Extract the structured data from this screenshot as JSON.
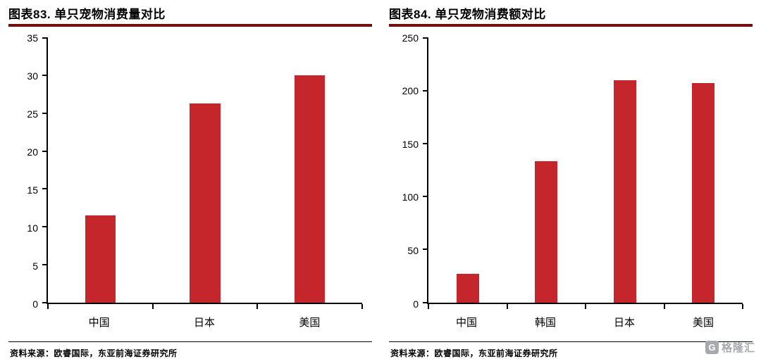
{
  "colors": {
    "bar": "#C5262C",
    "title_rule": "#70110F",
    "axis": "#000000",
    "watermark": "#A6A9AD"
  },
  "watermark": {
    "logo_letter": "G",
    "text": "格隆汇"
  },
  "chart_data": [
    {
      "type": "bar",
      "title": "图表83. 单只宠物消费量对比",
      "categories": [
        "中国",
        "日本",
        "美国"
      ],
      "values": [
        11.5,
        26.3,
        30.0
      ],
      "ylim": [
        0,
        35
      ],
      "ytick_step": 5,
      "grid": false,
      "legend": "none",
      "bar_color": "#C5262C",
      "source": "资料来源：欧睿国际，东亚前海证券研究所"
    },
    {
      "type": "bar",
      "title": "图表84. 单只宠物消费额对比",
      "categories": [
        "中国",
        "韩国",
        "日本",
        "美国"
      ],
      "values": [
        27,
        133,
        210,
        207
      ],
      "ylim": [
        0,
        250
      ],
      "ytick_step": 50,
      "grid": false,
      "legend": "none",
      "bar_color": "#C5262C",
      "source": "资料来源：欧睿国际，东亚前海证券研究所"
    }
  ]
}
